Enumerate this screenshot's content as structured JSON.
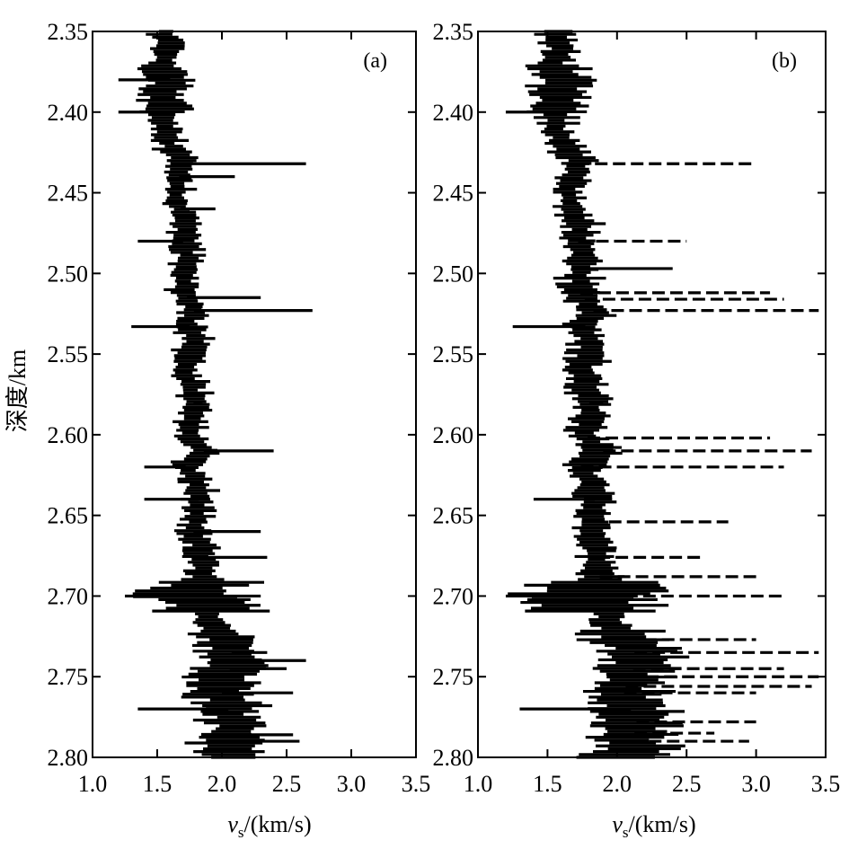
{
  "y_axis_label": "深度/km",
  "x_axis_label_symbol": "v",
  "x_axis_label_sub": "s",
  "x_axis_label_unit": "/(km/s)",
  "chart_data": [
    {
      "type": "line",
      "panel_label": "(a)",
      "xlabel": "v_s/(km/s)",
      "ylabel": "深度/km",
      "xlim": [
        1.0,
        3.5
      ],
      "ylim": [
        2.8,
        2.35
      ],
      "x_ticks": [
        "1.0",
        "1.5",
        "2.0",
        "2.5",
        "3.0",
        "3.5"
      ],
      "y_ticks": [
        "2.35",
        "2.40",
        "2.45",
        "2.50",
        "2.55",
        "2.60",
        "2.65",
        "2.70",
        "2.75",
        "2.80"
      ],
      "grid": false,
      "series": [
        {
          "points": [
            [
              2.35,
              1.55
            ],
            [
              2.36,
              1.58
            ],
            [
              2.37,
              1.52
            ],
            [
              2.38,
              1.6
            ],
            [
              2.39,
              1.52
            ],
            [
              2.4,
              1.58
            ],
            [
              2.41,
              1.55
            ],
            [
              2.42,
              1.6
            ],
            [
              2.43,
              1.7
            ],
            [
              2.44,
              1.67
            ],
            [
              2.45,
              1.64
            ],
            [
              2.46,
              1.68
            ],
            [
              2.47,
              1.72
            ],
            [
              2.48,
              1.7
            ],
            [
              2.49,
              1.74
            ],
            [
              2.5,
              1.72
            ],
            [
              2.51,
              1.7
            ],
            [
              2.52,
              1.76
            ],
            [
              2.525,
              1.8
            ],
            [
              2.53,
              1.74
            ],
            [
              2.54,
              1.78
            ],
            [
              2.55,
              1.76
            ],
            [
              2.56,
              1.72
            ],
            [
              2.57,
              1.76
            ],
            [
              2.58,
              1.78
            ],
            [
              2.59,
              1.78
            ],
            [
              2.6,
              1.74
            ],
            [
              2.61,
              1.86
            ],
            [
              2.62,
              1.72
            ],
            [
              2.63,
              1.8
            ],
            [
              2.64,
              1.82
            ],
            [
              2.65,
              1.8
            ],
            [
              2.66,
              1.78
            ],
            [
              2.67,
              1.84
            ],
            [
              2.68,
              1.84
            ],
            [
              2.69,
              1.86
            ],
            [
              2.7,
              1.78
            ],
            [
              2.71,
              1.88
            ],
            [
              2.72,
              1.95
            ],
            [
              2.73,
              2.05
            ],
            [
              2.74,
              2.1
            ],
            [
              2.75,
              2.02
            ],
            [
              2.76,
              2.0
            ],
            [
              2.77,
              2.05
            ],
            [
              2.78,
              2.1
            ],
            [
              2.79,
              2.05
            ],
            [
              2.8,
              2.05
            ]
          ]
        }
      ],
      "spikes": [
        [
          2.432,
          2.65
        ],
        [
          2.523,
          2.7
        ],
        [
          2.44,
          2.1
        ],
        [
          2.515,
          2.3
        ],
        [
          2.7,
          1.25
        ],
        [
          2.61,
          2.4
        ],
        [
          2.74,
          2.65
        ],
        [
          2.786,
          2.55
        ],
        [
          2.76,
          2.55
        ],
        [
          2.735,
          2.35
        ],
        [
          2.7,
          2.3
        ],
        [
          2.676,
          2.35
        ],
        [
          2.66,
          2.3
        ],
        [
          2.58,
          1.85
        ],
        [
          2.533,
          1.3
        ],
        [
          2.48,
          1.35
        ],
        [
          2.4,
          1.2
        ],
        [
          2.38,
          1.2
        ],
        [
          2.77,
          1.35
        ],
        [
          2.62,
          1.4
        ],
        [
          2.46,
          1.95
        ],
        [
          2.64,
          1.4
        ],
        [
          2.745,
          2.5
        ],
        [
          2.79,
          2.6
        ]
      ]
    },
    {
      "type": "line",
      "panel_label": "(b)",
      "xlabel": "v_s/(km/s)",
      "ylabel": "深度/km",
      "xlim": [
        1.0,
        3.5
      ],
      "ylim": [
        2.8,
        2.35
      ],
      "x_ticks": [
        "1.0",
        "1.5",
        "2.0",
        "2.5",
        "3.0",
        "3.5"
      ],
      "y_ticks": [
        "2.35",
        "2.40",
        "2.45",
        "2.50",
        "2.55",
        "2.60",
        "2.65",
        "2.70",
        "2.75",
        "2.80"
      ],
      "grid": false,
      "series": [
        {
          "points": [
            [
              2.35,
              1.55
            ],
            [
              2.36,
              1.6
            ],
            [
              2.37,
              1.55
            ],
            [
              2.38,
              1.62
            ],
            [
              2.39,
              1.55
            ],
            [
              2.4,
              1.58
            ],
            [
              2.41,
              1.55
            ],
            [
              2.42,
              1.62
            ],
            [
              2.43,
              1.72
            ],
            [
              2.44,
              1.68
            ],
            [
              2.45,
              1.65
            ],
            [
              2.46,
              1.68
            ],
            [
              2.47,
              1.74
            ],
            [
              2.48,
              1.72
            ],
            [
              2.49,
              1.76
            ],
            [
              2.5,
              1.74
            ],
            [
              2.51,
              1.72
            ],
            [
              2.52,
              1.8
            ],
            [
              2.525,
              1.85
            ],
            [
              2.53,
              1.76
            ],
            [
              2.54,
              1.8
            ],
            [
              2.55,
              1.78
            ],
            [
              2.56,
              1.74
            ],
            [
              2.57,
              1.78
            ],
            [
              2.58,
              1.8
            ],
            [
              2.59,
              1.8
            ],
            [
              2.6,
              1.76
            ],
            [
              2.61,
              1.9
            ],
            [
              2.62,
              1.74
            ],
            [
              2.63,
              1.82
            ],
            [
              2.64,
              1.84
            ],
            [
              2.65,
              1.82
            ],
            [
              2.66,
              1.8
            ],
            [
              2.67,
              1.86
            ],
            [
              2.68,
              1.86
            ],
            [
              2.69,
              1.88
            ],
            [
              2.7,
              1.8
            ],
            [
              2.71,
              1.9
            ],
            [
              2.72,
              1.98
            ],
            [
              2.73,
              2.1
            ],
            [
              2.74,
              2.15
            ],
            [
              2.75,
              2.08
            ],
            [
              2.76,
              2.05
            ],
            [
              2.77,
              2.1
            ],
            [
              2.78,
              2.15
            ],
            [
              2.79,
              2.1
            ],
            [
              2.8,
              2.1
            ]
          ]
        }
      ],
      "spikes": [
        [
          2.432,
          3.0
        ],
        [
          2.523,
          3.45
        ],
        [
          2.512,
          3.1
        ],
        [
          2.516,
          3.2
        ],
        [
          2.61,
          3.4
        ],
        [
          2.62,
          3.2
        ],
        [
          2.602,
          3.1
        ],
        [
          2.7,
          3.2
        ],
        [
          2.7,
          1.2
        ],
        [
          2.735,
          3.45
        ],
        [
          2.75,
          3.45
        ],
        [
          2.756,
          3.4
        ],
        [
          2.778,
          3.0
        ],
        [
          2.79,
          2.95
        ],
        [
          2.745,
          3.2
        ],
        [
          2.727,
          3.0
        ],
        [
          2.676,
          2.6
        ],
        [
          2.688,
          3.0
        ],
        [
          2.654,
          2.8
        ],
        [
          2.533,
          1.25
        ],
        [
          2.48,
          2.5
        ],
        [
          2.497,
          2.4
        ],
        [
          2.4,
          1.2
        ],
        [
          2.58,
          1.9
        ],
        [
          2.64,
          1.4
        ],
        [
          2.77,
          1.3
        ],
        [
          2.76,
          3.0
        ],
        [
          2.785,
          2.7
        ]
      ]
    }
  ]
}
